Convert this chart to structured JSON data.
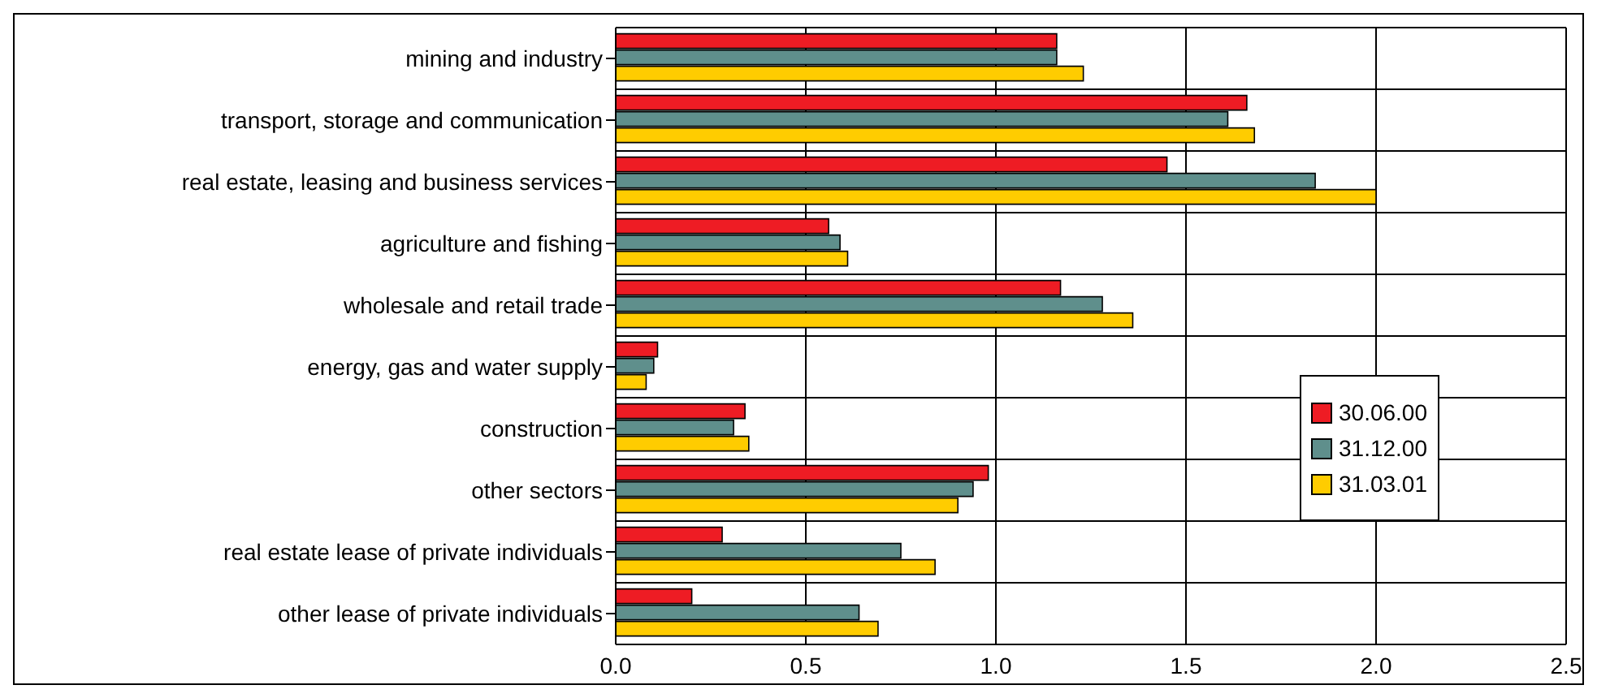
{
  "chart_data": {
    "type": "bar",
    "orientation": "horizontal",
    "categories": [
      "mining and industry",
      "transport, storage and communication",
      "real estate, leasing and business services",
      "agriculture and fishing",
      "wholesale and retail trade",
      "energy, gas and water supply",
      "construction",
      "other sectors",
      "real estate lease of private individuals",
      "other lease of private individuals"
    ],
    "series": [
      {
        "name": "30.06.00",
        "color": "#ee1c24",
        "values": [
          1.16,
          1.66,
          1.45,
          0.56,
          1.17,
          0.11,
          0.34,
          0.98,
          0.28,
          0.2
        ]
      },
      {
        "name": "31.12.00",
        "color": "#5f8f8c",
        "values": [
          1.16,
          1.61,
          1.84,
          0.59,
          1.28,
          0.1,
          0.31,
          0.94,
          0.75,
          0.64
        ]
      },
      {
        "name": "31.03.01",
        "color": "#ffcc00",
        "values": [
          1.23,
          1.68,
          2.0,
          0.61,
          1.36,
          0.08,
          0.35,
          0.9,
          0.84,
          0.69
        ]
      }
    ],
    "xlim": [
      0,
      2.5
    ],
    "xticks": [
      {
        "value": 0,
        "label": "0.0"
      },
      {
        "value": 0.5,
        "label": "0.5"
      },
      {
        "value": 1,
        "label": "1.0"
      },
      {
        "value": 1.5,
        "label": "1.5"
      },
      {
        "value": 2,
        "label": "2.0"
      },
      {
        "value": 2.5,
        "label": "2.5"
      }
    ],
    "grid": true,
    "legend": "right"
  }
}
